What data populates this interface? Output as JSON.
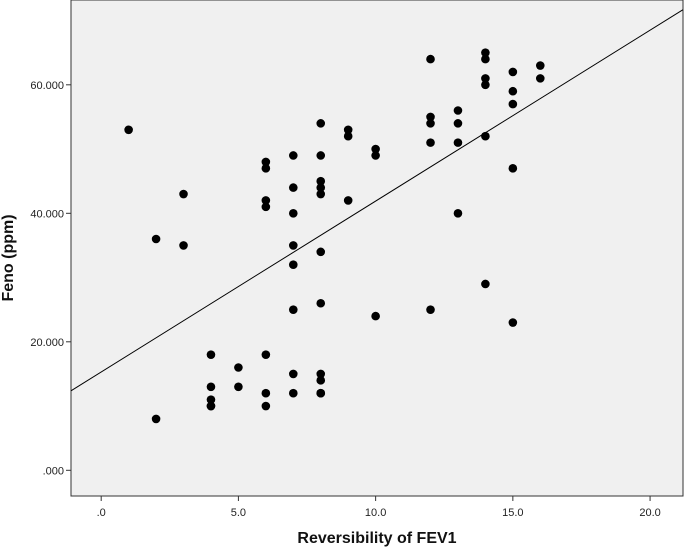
{
  "chart_data": {
    "type": "scatter",
    "title": "",
    "xlabel": "Reversibility of FEV1",
    "ylabel": "Feno (ppm)",
    "xlim": [
      -1.1,
      21.2
    ],
    "ylim": [
      -4.0,
      73.2
    ],
    "x_ticks": [
      0,
      5,
      10,
      15,
      20
    ],
    "x_tick_labels": [
      ".0",
      "5.0",
      "10.0",
      "15.0",
      "20.0"
    ],
    "y_ticks": [
      0,
      20,
      40,
      60
    ],
    "y_tick_labels": [
      ".000",
      "20.000",
      "40.000",
      "60.000"
    ],
    "grid": false,
    "legend": "none",
    "plot_background": "#f0f0f0",
    "marker_color": "#000000",
    "fit_line": {
      "type": "linear",
      "intercept": 15.3,
      "slope": 2.66,
      "color": "#000000"
    },
    "series": [
      {
        "x": [
          1,
          2,
          2,
          3,
          3,
          4,
          4,
          4,
          4,
          4,
          5,
          5,
          6,
          6,
          6,
          6,
          6,
          6,
          6,
          7,
          7,
          7,
          7,
          7,
          7,
          7,
          7,
          8,
          8,
          8,
          8,
          8,
          8,
          8,
          8,
          8,
          8,
          8,
          9,
          9,
          9,
          10,
          10,
          10,
          12,
          12,
          12,
          12,
          12,
          13,
          13,
          13,
          13,
          14,
          14,
          14,
          14,
          14,
          14,
          15,
          15,
          15,
          15,
          15,
          16,
          16
        ],
        "y": [
          53,
          36,
          8,
          43,
          35,
          18,
          13,
          11,
          10,
          10,
          16,
          13,
          48,
          47,
          42,
          41,
          18,
          12,
          10,
          49,
          44,
          40,
          35,
          32,
          25,
          15,
          12,
          54,
          49,
          45,
          44,
          43,
          34,
          26,
          15,
          14,
          12,
          12,
          53,
          52,
          42,
          50,
          49,
          24,
          64,
          55,
          54,
          51,
          25,
          56,
          54,
          51,
          40,
          65,
          64,
          61,
          60,
          52,
          29,
          62,
          59,
          57,
          47,
          23,
          63,
          61
        ]
      }
    ]
  }
}
